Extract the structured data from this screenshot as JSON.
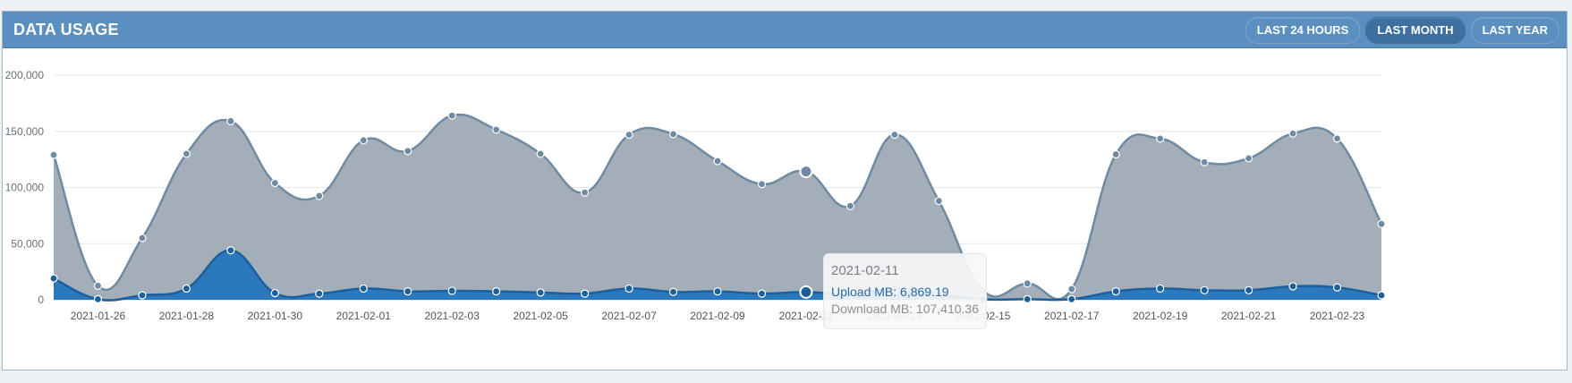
{
  "header": {
    "title": "DATA USAGE",
    "buttons": [
      {
        "label": "LAST 24 HOURS",
        "active": false
      },
      {
        "label": "LAST MONTH",
        "active": true
      },
      {
        "label": "LAST YEAR",
        "active": false
      }
    ]
  },
  "tooltip": {
    "date": "2021-02-11",
    "upload_text": "Upload MB: 6,869.19",
    "download_text": "Download MB: 107,410.36"
  },
  "chart_data": {
    "type": "area",
    "x": [
      "2021-01-25",
      "2021-01-26",
      "2021-01-27",
      "2021-01-28",
      "2021-01-29",
      "2021-01-30",
      "2021-01-31",
      "2021-02-01",
      "2021-02-02",
      "2021-02-03",
      "2021-02-04",
      "2021-02-05",
      "2021-02-06",
      "2021-02-07",
      "2021-02-08",
      "2021-02-09",
      "2021-02-10",
      "2021-02-11",
      "2021-02-12",
      "2021-02-13",
      "2021-02-14",
      "2021-02-15",
      "2021-02-16",
      "2021-02-17",
      "2021-02-18",
      "2021-02-19",
      "2021-02-20",
      "2021-02-21",
      "2021-02-22",
      "2021-02-23",
      "2021-02-24"
    ],
    "x_tick_labels": [
      "2021-01-26",
      "2021-01-28",
      "2021-01-30",
      "2021-02-01",
      "2021-02-03",
      "2021-02-05",
      "2021-02-07",
      "2021-02-09",
      "2021-02-11",
      "2021-02-13",
      "2021-02-15",
      "2021-02-17",
      "2021-02-19",
      "2021-02-21",
      "2021-02-23"
    ],
    "stacked": true,
    "series": [
      {
        "name": "Upload MB",
        "color": "#2b78bd",
        "values": [
          19000,
          500,
          4000,
          10000,
          44000,
          6000,
          5500,
          10000,
          7500,
          8000,
          7500,
          6500,
          5500,
          10000,
          7000,
          7500,
          5500,
          6869.19,
          5000,
          10000,
          5000,
          500,
          500,
          500,
          7500,
          10000,
          8500,
          8500,
          12000,
          11000,
          4000
        ]
      },
      {
        "name": "Download MB",
        "color": "#a3aeb8",
        "values": [
          110000,
          12000,
          51000,
          120000,
          115000,
          98000,
          87000,
          132000,
          125000,
          156000,
          144000,
          123500,
          90000,
          137000,
          140500,
          116000,
          97500,
          107410.36,
          78500,
          137000,
          83000,
          7500,
          14000,
          9000,
          122000,
          133500,
          114000,
          117500,
          136000,
          132500,
          63500
        ]
      }
    ],
    "yticks": [
      "0",
      "50,000",
      "100,000",
      "150,000",
      "200,000"
    ],
    "ylim": [
      0,
      200000
    ],
    "grid": true,
    "highlight_index": 17
  }
}
